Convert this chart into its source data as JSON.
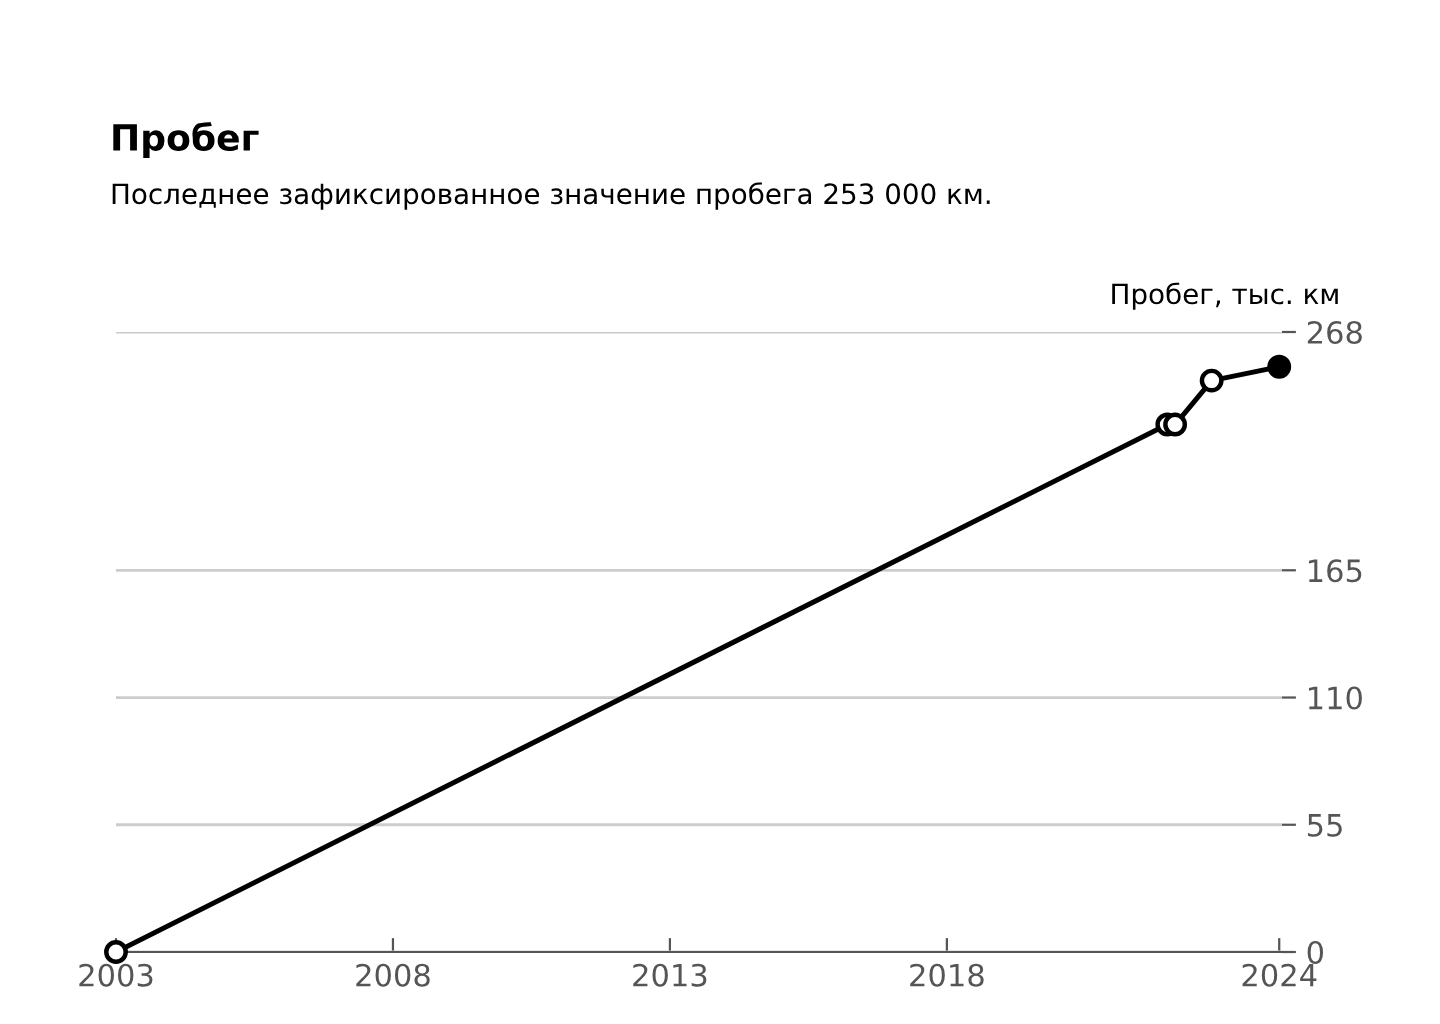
{
  "chart_data": {
    "type": "line",
    "title": "Пробег",
    "subtitle": "Последнее зафиксированное значение пробега 253 000 км.",
    "ylabel": "Пробег, тыс. км",
    "x": [
      2003.0,
      2021.98,
      2022.12,
      2022.78,
      2024.0
    ],
    "series": [
      {
        "color": "#000000",
        "values": [
          0,
          228,
          228,
          247,
          253
        ]
      }
    ],
    "xlim": [
      2003,
      2024.05
    ],
    "xticks": [
      2003,
      2008,
      2013,
      2018,
      2024
    ],
    "ylim": [
      0,
      268
    ],
    "yticks": [
      0,
      55,
      110,
      165,
      268
    ],
    "grid": "y",
    "marker": "circle",
    "line_style": "solid"
  }
}
